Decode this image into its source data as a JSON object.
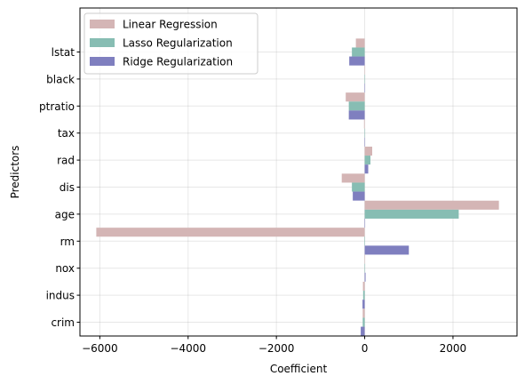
{
  "chart_data": {
    "type": "bar",
    "orientation": "horizontal",
    "title": "",
    "xlabel": "Coefficient",
    "ylabel": "Predictors",
    "categories": [
      "crim",
      "indus",
      "nox",
      "rm",
      "age",
      "dis",
      "rad",
      "tax",
      "ptratio",
      "black",
      "lstat"
    ],
    "xlim": [
      -6450,
      3450
    ],
    "xticks": [
      -6000,
      -4000,
      -2000,
      0,
      2000
    ],
    "xtick_labels": [
      "−6000",
      "−4000",
      "−2000",
      "0",
      "2000"
    ],
    "grid": true,
    "legend_position": "top-left",
    "series": [
      {
        "name": "Linear Regression",
        "color": "#d4b5b5",
        "values": [
          -45,
          -40,
          10,
          -6080,
          3040,
          -520,
          170,
          -15,
          -430,
          5,
          -200
        ]
      },
      {
        "name": "Lasso Regularization",
        "color": "#87bdb3",
        "values": [
          -45,
          -35,
          0,
          -1,
          2130,
          -290,
          130,
          0,
          -360,
          5,
          -290
        ]
      },
      {
        "name": "Ridge Regularization",
        "color": "#7f7fbf",
        "values": [
          -90,
          -50,
          20,
          1000,
          5,
          -270,
          80,
          0,
          -360,
          5,
          -350
        ]
      }
    ]
  }
}
